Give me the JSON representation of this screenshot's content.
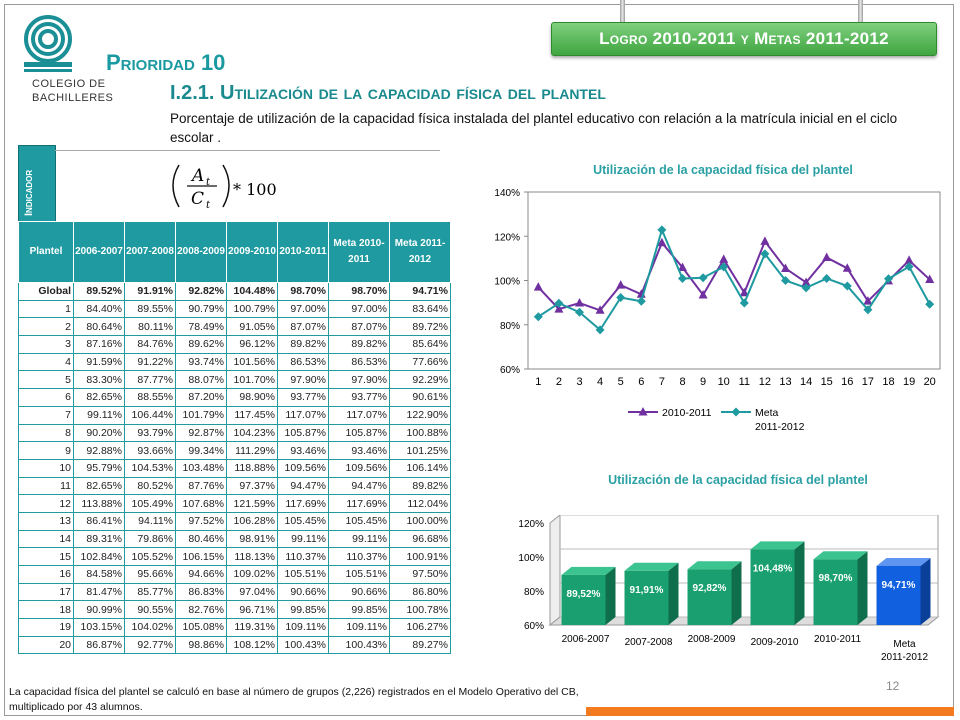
{
  "header": {
    "ribbon": "Logro 2010-2011 y Metas 2011-2012",
    "logo_line1": "COLEGIO DE",
    "logo_line2": "BACHILLERES",
    "priority": "Prioridad 10",
    "indicator_title": "I.2.1. Utilización de la capacidad física del plantel",
    "description": "Porcentaje de utilización de la capacidad física instalada del plantel educativo con relación a la matrícula inicial en el ciclo escolar ."
  },
  "indicator_tab": "Indicador",
  "formula": {
    "numerator": "A",
    "denominator": "C",
    "subscript": "t",
    "multiplier": "* 100"
  },
  "table": {
    "headers": [
      "Plantel",
      "2006-2007",
      "2007-2008",
      "2008-2009",
      "2009-2010",
      "2010-2011",
      "Meta 2010-2011",
      "Meta 2011-2012"
    ],
    "rows": [
      [
        "Global",
        "89.52%",
        "91.91%",
        "92.82%",
        "104.48%",
        "98.70%",
        "98.70%",
        "94.71%"
      ],
      [
        "1",
        "84.40%",
        "89.55%",
        "90.79%",
        "100.79%",
        "97.00%",
        "97.00%",
        "83.64%"
      ],
      [
        "2",
        "80.64%",
        "80.11%",
        "78.49%",
        "91.05%",
        "87.07%",
        "87.07%",
        "89.72%"
      ],
      [
        "3",
        "87.16%",
        "84.76%",
        "89.62%",
        "96.12%",
        "89.82%",
        "89.82%",
        "85.64%"
      ],
      [
        "4",
        "91.59%",
        "91.22%",
        "93.74%",
        "101.56%",
        "86.53%",
        "86.53%",
        "77.66%"
      ],
      [
        "5",
        "83.30%",
        "87.77%",
        "88.07%",
        "101.70%",
        "97.90%",
        "97.90%",
        "92.29%"
      ],
      [
        "6",
        "82.65%",
        "88.55%",
        "87.20%",
        "98.90%",
        "93.77%",
        "93.77%",
        "90.61%"
      ],
      [
        "7",
        "99.11%",
        "106.44%",
        "101.79%",
        "117.45%",
        "117.07%",
        "117.07%",
        "122.90%"
      ],
      [
        "8",
        "90.20%",
        "93.79%",
        "92.87%",
        "104.23%",
        "105.87%",
        "105.87%",
        "100.88%"
      ],
      [
        "9",
        "92.88%",
        "93.66%",
        "99.34%",
        "111.29%",
        "93.46%",
        "93.46%",
        "101.25%"
      ],
      [
        "10",
        "95.79%",
        "104.53%",
        "103.48%",
        "118.88%",
        "109.56%",
        "109.56%",
        "106.14%"
      ],
      [
        "11",
        "82.65%",
        "80.52%",
        "87.76%",
        "97.37%",
        "94.47%",
        "94.47%",
        "89.82%"
      ],
      [
        "12",
        "113.88%",
        "105.49%",
        "107.68%",
        "121.59%",
        "117.69%",
        "117.69%",
        "112.04%"
      ],
      [
        "13",
        "86.41%",
        "94.11%",
        "97.52%",
        "106.28%",
        "105.45%",
        "105.45%",
        "100.00%"
      ],
      [
        "14",
        "89.31%",
        "79.86%",
        "80.46%",
        "98.91%",
        "99.11%",
        "99.11%",
        "96.68%"
      ],
      [
        "15",
        "102.84%",
        "105.52%",
        "106.15%",
        "118.13%",
        "110.37%",
        "110.37%",
        "100.91%"
      ],
      [
        "16",
        "84.58%",
        "95.66%",
        "94.66%",
        "109.02%",
        "105.51%",
        "105.51%",
        "97.50%"
      ],
      [
        "17",
        "81.47%",
        "85.77%",
        "86.83%",
        "97.04%",
        "90.66%",
        "90.66%",
        "86.80%"
      ],
      [
        "18",
        "90.99%",
        "90.55%",
        "82.76%",
        "96.71%",
        "99.85%",
        "99.85%",
        "100.78%"
      ],
      [
        "19",
        "103.15%",
        "104.02%",
        "105.08%",
        "119.31%",
        "109.11%",
        "109.11%",
        "106.27%"
      ],
      [
        "20",
        "86.87%",
        "92.77%",
        "98.86%",
        "108.12%",
        "100.43%",
        "100.43%",
        "89.27%"
      ]
    ]
  },
  "footnote": "La capacidad física del plantel se calculó en base al número de grupos (2,226) registrados en el Modelo Operativo del CB, multiplicado por 43 alumnos.",
  "page_number": "12",
  "colors": {
    "teal": "#1e9aa0",
    "purple": "#7030a0",
    "bar_green": "#1aa070",
    "bar_blue": "#1060e0",
    "orange": "#f47a20"
  },
  "chart_data": [
    {
      "type": "line",
      "title": "Utilización de la capacidad física del plantel",
      "categories": [
        "1",
        "2",
        "3",
        "4",
        "5",
        "6",
        "7",
        "8",
        "9",
        "10",
        "11",
        "12",
        "13",
        "14",
        "15",
        "16",
        "17",
        "18",
        "19",
        "20"
      ],
      "ylim": [
        60,
        140
      ],
      "yticks": [
        "60%",
        "80%",
        "100%",
        "120%",
        "140%"
      ],
      "legend": "bottom",
      "series": [
        {
          "name": "2010-2011",
          "color": "#7030a0",
          "values": [
            97.0,
            87.07,
            89.82,
            86.53,
            97.9,
            93.77,
            117.07,
            105.87,
            93.46,
            109.56,
            94.47,
            117.69,
            105.45,
            99.11,
            110.37,
            105.51,
            90.66,
            99.85,
            109.11,
            100.43
          ]
        },
        {
          "name": "Meta 2011-2012",
          "color": "#1e9aa0",
          "values": [
            83.64,
            89.72,
            85.64,
            77.66,
            92.29,
            90.61,
            122.9,
            100.88,
            101.25,
            106.14,
            89.82,
            112.04,
            100.0,
            96.68,
            100.91,
            97.5,
            86.8,
            100.78,
            106.27,
            89.27
          ]
        }
      ]
    },
    {
      "type": "bar",
      "title": "Utilización de la capacidad física del plantel",
      "categories": [
        "2006-2007",
        "2007-2008",
        "2008-2009",
        "2009-2010",
        "2010-2011",
        "Meta 2011-2012"
      ],
      "values": [
        89.52,
        91.91,
        92.82,
        104.48,
        98.7,
        94.71
      ],
      "labels": [
        "89,52%",
        "91,91%",
        "92,82%",
        "104,48%",
        "98,70%",
        "94,71%"
      ],
      "ylim": [
        60,
        120
      ],
      "yticks": [
        "60%",
        "80%",
        "100%",
        "120%"
      ]
    }
  ]
}
